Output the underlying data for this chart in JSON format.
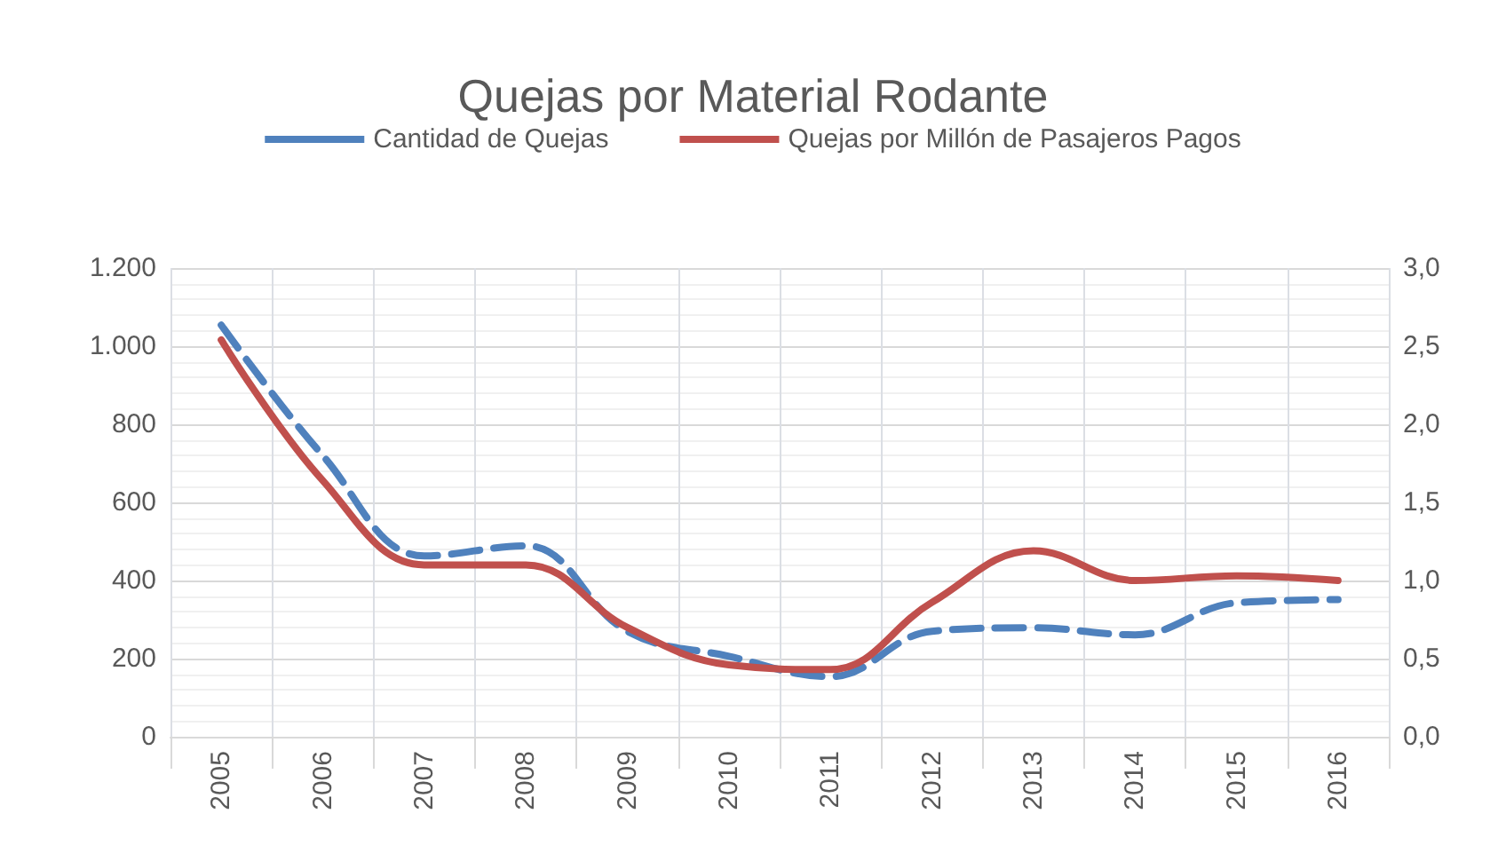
{
  "chart_data": {
    "type": "line",
    "title": "Quejas por Material Rodante",
    "categories": [
      "2005",
      "2006",
      "2007",
      "2008",
      "2009",
      "2010",
      "2011",
      "2012",
      "2013",
      "2014",
      "2015",
      "2016"
    ],
    "series": [
      {
        "name": "Cantidad de Quejas",
        "color": "#4f81bd",
        "line_style": "dashed",
        "values": [
          1054,
          720,
          463,
          489,
          270,
          206,
          154,
          270,
          279,
          261,
          343,
          351
        ]
      },
      {
        "name": "Quejas por Millón de Pasajeros Pagos",
        "color": "#c0504d",
        "line_style": "solid",
        "axis": "y2",
        "values": [
          2.54,
          1.64,
          1.1,
          1.1,
          0.7,
          0.46,
          0.43,
          0.86,
          1.19,
          1.0,
          1.03,
          1.0
        ]
      }
    ],
    "ylim": [
      0,
      1200
    ],
    "yticks": [
      0,
      {
        "value": 200,
        "label": "200"
      },
      {
        "value": 400,
        "label": "400"
      },
      {
        "value": 600,
        "label": "600"
      },
      {
        "value": 800,
        "label": "800"
      },
      {
        "value": 1000,
        "label": "1.000"
      },
      {
        "value": 1200,
        "label": "1.200"
      }
    ],
    "y2lim": [
      0,
      3
    ],
    "y2ticks": [
      {
        "value": 0,
        "label": "0,0"
      },
      {
        "value": 0.5,
        "label": "0,5"
      },
      {
        "value": 1,
        "label": "1,0"
      },
      {
        "value": 1.5,
        "label": "1,5"
      },
      {
        "value": 2,
        "label": "2,0"
      },
      {
        "value": 2.5,
        "label": "2,5"
      },
      {
        "value": 3,
        "label": "3,0"
      }
    ],
    "grid": true,
    "legend": "top",
    "marker": "none"
  }
}
